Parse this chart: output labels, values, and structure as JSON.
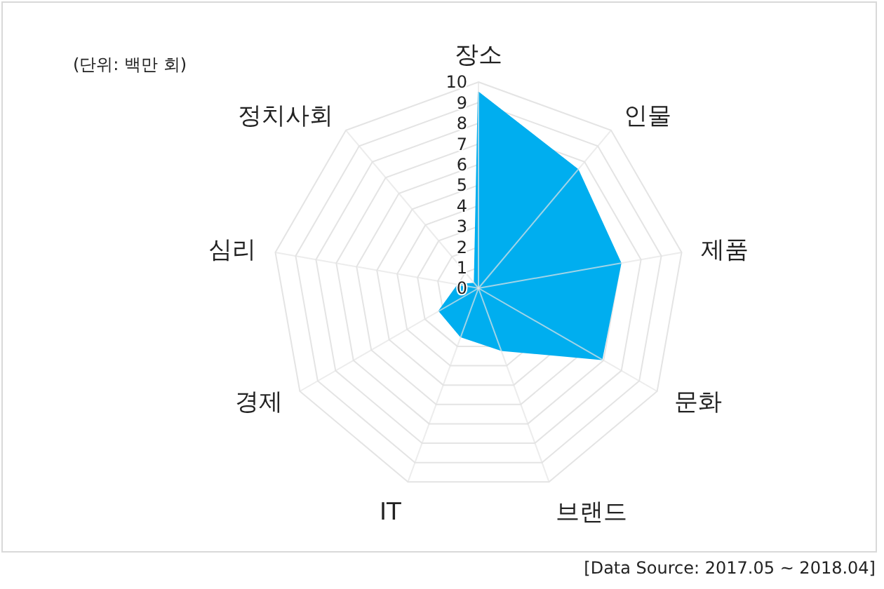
{
  "chart_data": {
    "type": "radar",
    "ylabel": "(단위: 백만 회)",
    "annotations": [
      "[Data Source: 2017.05 ~ 2018.04]"
    ],
    "categories": [
      "장소",
      "인물",
      "제품",
      "문화",
      "브랜드",
      "IT",
      "경제",
      "심리",
      "정치사회"
    ],
    "series": [
      {
        "color": "#00aeef",
        "values": [
          9.5,
          7.5,
          7.0,
          6.9,
          3.2,
          2.5,
          2.2,
          1.0,
          0.3
        ]
      }
    ],
    "ylim": [
      0,
      10
    ],
    "yticks": [
      0,
      1,
      2,
      3,
      4,
      5,
      6,
      7,
      8,
      9,
      10
    ],
    "grid": true
  }
}
